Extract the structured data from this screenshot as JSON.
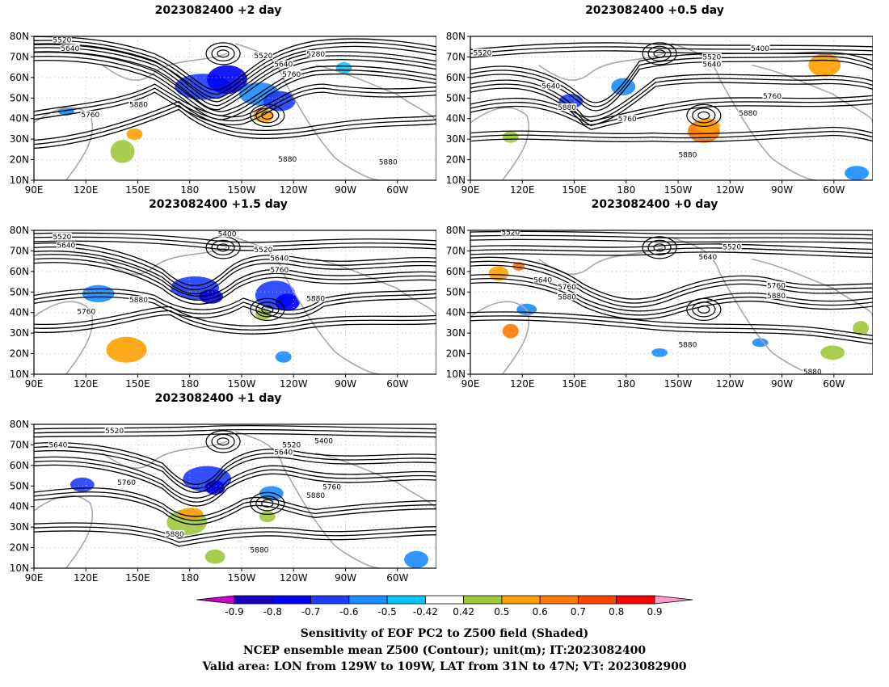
{
  "panels": [
    {
      "title": "2023082400  +2 day",
      "contour_labels": [
        "5520",
        "5640",
        "5280",
        "5520",
        "5640",
        "5760",
        "5760",
        "5880",
        "5880",
        "5880"
      ]
    },
    {
      "title": "2023082400  +0.5 day",
      "contour_labels": [
        "5520",
        "5400",
        "5520",
        "5640",
        "5640",
        "5880",
        "5760",
        "5760",
        "5880",
        "5880"
      ]
    },
    {
      "title": "2023082400  +1.5 day",
      "contour_labels": [
        "5520",
        "5640",
        "5400",
        "5520",
        "5640",
        "5760",
        "5760",
        "5880",
        "5880"
      ]
    },
    {
      "title": "2023082400  +0 day",
      "contour_labels": [
        "5520",
        "5520",
        "5640",
        "5640",
        "5760",
        "5880",
        "5760",
        "5880",
        "5880",
        "5880"
      ]
    },
    {
      "title": "2023082400  +1 day",
      "contour_labels": [
        "5520",
        "5640",
        "5400",
        "5520",
        "5640",
        "5760",
        "5760",
        "5880",
        "5880",
        "5880"
      ]
    }
  ],
  "axes": {
    "lat_ticks": [
      "80N",
      "70N",
      "60N",
      "50N",
      "40N",
      "30N",
      "20N",
      "10N"
    ],
    "lon_ticks": [
      "90E",
      "120E",
      "150E",
      "180",
      "150W",
      "120W",
      "90W",
      "60W"
    ]
  },
  "colorbar": {
    "tick_labels": [
      "-0.9",
      "-0.8",
      "-0.7",
      "-0.6",
      "-0.5",
      "-0.42",
      "0.42",
      "0.5",
      "0.6",
      "0.7",
      "0.8",
      "0.9"
    ],
    "colors": [
      "#cc00cc",
      "#1a00c0",
      "#0000ff",
      "#1e3cff",
      "#1a8cff",
      "#00c8ff",
      "#ffffff",
      "#a0c83c",
      "#ffa000",
      "#ff7800",
      "#ff4600",
      "#ff0000",
      "#ff99cc"
    ]
  },
  "caption": [
    "Sensitivity of EOF PC2 to Z500 field (Shaded)",
    "NCEP ensemble mean Z500 (Contour); unit(m); IT:2023082400",
    "Valid area: LON from 129W to 109W, LAT from 31N to 47N; VT: 2023082900"
  ]
}
